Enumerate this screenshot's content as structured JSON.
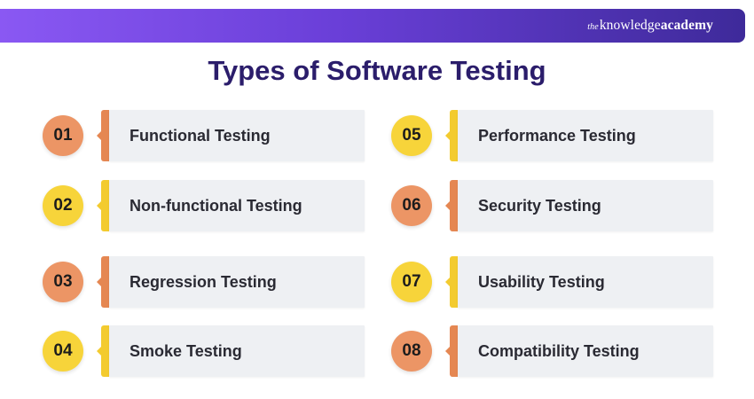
{
  "brand": {
    "prefix": "the",
    "name_regular": "knowledge",
    "name_bold": "academy"
  },
  "title": "Types of Software Testing",
  "colors": {
    "orange": "#ec9565",
    "orange_tab": "#e58752",
    "yellow": "#f7d43a",
    "yellow_tab": "#f3cb2f",
    "card": "#eef0f3",
    "title": "#2b1d6b",
    "banner_start": "#8a58f3",
    "banner_end": "#3e2a9a"
  },
  "items": [
    {
      "number": "01",
      "label": "Functional Testing",
      "color": "orange"
    },
    {
      "number": "02",
      "label": "Non-functional Testing",
      "color": "yellow"
    },
    {
      "number": "03",
      "label": "Regression Testing",
      "color": "orange"
    },
    {
      "number": "04",
      "label": "Smoke Testing",
      "color": "yellow"
    },
    {
      "number": "05",
      "label": "Performance Testing",
      "color": "yellow"
    },
    {
      "number": "06",
      "label": "Security Testing",
      "color": "orange"
    },
    {
      "number": "07",
      "label": "Usability Testing",
      "color": "yellow"
    },
    {
      "number": "08",
      "label": "Compatibility Testing",
      "color": "orange"
    }
  ]
}
